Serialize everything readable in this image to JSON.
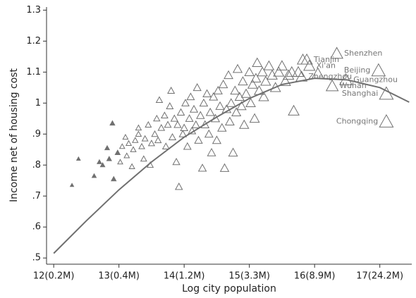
{
  "chart_data": {
    "type": "scatter",
    "x_label": "Log city population",
    "y_label": "Income net of housing cost",
    "xlim": [
      11.89,
      17.49
    ],
    "ylim": [
      0.48,
      1.31
    ],
    "xticks": [
      {
        "value": 12,
        "label": "12(0.2M)"
      },
      {
        "value": 13,
        "label": "13(0.4M)"
      },
      {
        "value": 14,
        "label": "14(1.2M)"
      },
      {
        "value": 15,
        "label": "15(3.3M)"
      },
      {
        "value": 16,
        "label": "16(8.9M)"
      },
      {
        "value": 17,
        "label": "17(24.2M)"
      }
    ],
    "yticks": [
      {
        "value": 0.5,
        "label": ".5"
      },
      {
        "value": 0.6,
        "label": ".6"
      },
      {
        "value": 0.7,
        "label": ".7"
      },
      {
        "value": 0.8,
        "label": ".8"
      },
      {
        "value": 0.9,
        "label": ".9"
      },
      1,
      1.1,
      1.2,
      1.3
    ],
    "color": "#707070",
    "points": {
      "x": [
        12.28,
        12.38,
        12.62,
        12.7,
        12.75,
        12.82,
        12.85,
        12.92,
        12.9,
        12.98,
        13.02,
        13.05,
        13.1,
        13.12,
        13.15,
        13.2,
        13.22,
        13.25,
        13.3,
        13.3,
        13.35,
        13.38,
        13.4,
        13.45,
        13.48,
        13.5,
        13.55,
        13.58,
        13.6,
        13.62,
        13.65,
        13.7,
        13.72,
        13.75,
        13.78,
        13.8,
        13.82,
        13.85,
        13.88,
        13.9,
        13.92,
        13.95,
        13.98,
        14.0,
        14.02,
        14.05,
        14.08,
        14.1,
        14.12,
        14.15,
        14.18,
        14.2,
        14.22,
        14.25,
        14.28,
        14.3,
        14.32,
        14.35,
        14.38,
        14.4,
        14.42,
        14.45,
        14.48,
        14.5,
        14.52,
        14.55,
        14.58,
        14.6,
        14.62,
        14.65,
        14.68,
        14.7,
        14.72,
        14.75,
        14.78,
        14.8,
        14.82,
        14.85,
        14.88,
        14.9,
        14.92,
        14.95,
        15.0,
        15.02,
        15.05,
        15.08,
        15.1,
        15.12,
        15.15,
        15.2,
        15.22,
        15.25,
        15.3,
        15.35,
        15.4,
        15.45,
        15.5,
        15.55,
        15.6,
        15.65,
        15.68,
        15.75,
        15.82,
        16.05
      ],
      "values": [
        0.735,
        0.82,
        0.765,
        0.81,
        0.8,
        0.855,
        0.82,
        0.755,
        0.935,
        0.84,
        0.81,
        0.86,
        0.89,
        0.83,
        0.87,
        0.795,
        0.85,
        0.88,
        0.9,
        0.92,
        0.86,
        0.82,
        0.885,
        0.93,
        0.8,
        0.87,
        0.9,
        0.95,
        0.88,
        1.01,
        0.92,
        0.96,
        0.86,
        0.93,
        0.99,
        1.04,
        0.89,
        0.95,
        0.81,
        0.93,
        0.73,
        0.97,
        0.9,
        0.92,
        1.0,
        0.86,
        0.95,
        1.02,
        0.91,
        0.98,
        0.93,
        1.05,
        0.88,
        0.96,
        0.79,
        1.0,
        0.93,
        1.03,
        0.9,
        0.97,
        0.84,
        1.02,
        0.95,
        0.88,
        1.04,
        0.99,
        0.92,
        1.06,
        0.79,
        0.98,
        1.09,
        0.94,
        1.0,
        0.84,
        1.04,
        0.97,
        1.11,
        1.02,
        0.99,
        1.07,
        0.93,
        1.03,
        1.1,
        1.0,
        1.06,
        0.95,
        1.08,
        1.13,
        1.04,
        1.1,
        1.02,
        1.07,
        1.12,
        1.09,
        1.05,
        1.1,
        1.12,
        1.07,
        1.09,
        1.1,
        0.975,
        1.1,
        1.14,
        1.095
      ]
    },
    "labeled_points": {
      "labels": [
        "Shenzhen",
        "Tianjin",
        "Xi'an",
        "Zhengzhou",
        "Wuhan",
        "Guangzhou",
        "Beijing",
        "Shanghai",
        "Chongqing"
      ],
      "x": [
        16.34,
        15.88,
        15.92,
        15.8,
        16.27,
        16.48,
        16.98,
        17.1,
        17.1
      ],
      "values": [
        1.16,
        1.14,
        1.12,
        1.085,
        1.055,
        1.075,
        1.105,
        1.03,
        0.94
      ]
    },
    "fit": {
      "x": [
        12.0,
        12.5,
        13.0,
        13.5,
        14.0,
        14.5,
        15.0,
        15.5,
        16.0,
        16.5,
        17.0,
        17.45
      ],
      "values": [
        0.515,
        0.62,
        0.72,
        0.81,
        0.89,
        0.955,
        1.015,
        1.06,
        1.08,
        1.075,
        1.05,
        1.003
      ]
    }
  }
}
